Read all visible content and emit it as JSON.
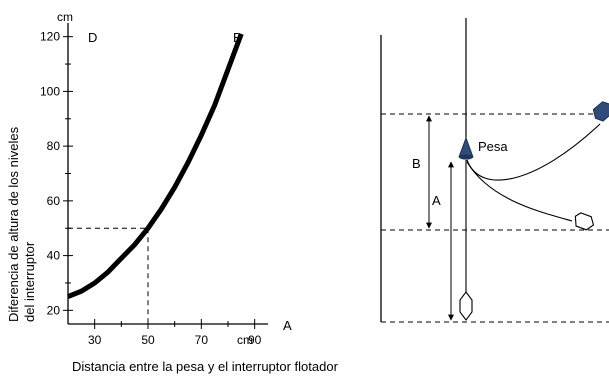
{
  "chart_data": {
    "type": "line",
    "x_unit": "cm",
    "y_unit": "cm",
    "x_axis_end_letter": "A",
    "curve_end_letter": "B",
    "y_axis_top_letter": "D",
    "xlim": [
      20,
      95
    ],
    "ylim": [
      15,
      125
    ],
    "xticks": [
      30,
      50,
      70,
      90
    ],
    "yticks": [
      20,
      40,
      60,
      80,
      100,
      120
    ],
    "ylabel_line1": "Diferencia de altura de los niveles",
    "ylabel_line2": "del interruptor",
    "xlabel": "Distancia entre la pesa y el interruptor flotador",
    "series": [
      {
        "x": [
          20,
          25,
          30,
          35,
          40,
          45,
          50,
          55,
          60,
          65,
          70,
          75,
          80,
          85
        ],
        "y": [
          25,
          27,
          30,
          34,
          39,
          44,
          50,
          57,
          65,
          74,
          84,
          95,
          108,
          121
        ]
      }
    ],
    "reference_point": {
      "x": 50,
      "y": 50
    }
  },
  "diagram": {
    "weight_label": "Pesa",
    "dimension_b_label": "B",
    "dimension_a_label": "A"
  }
}
